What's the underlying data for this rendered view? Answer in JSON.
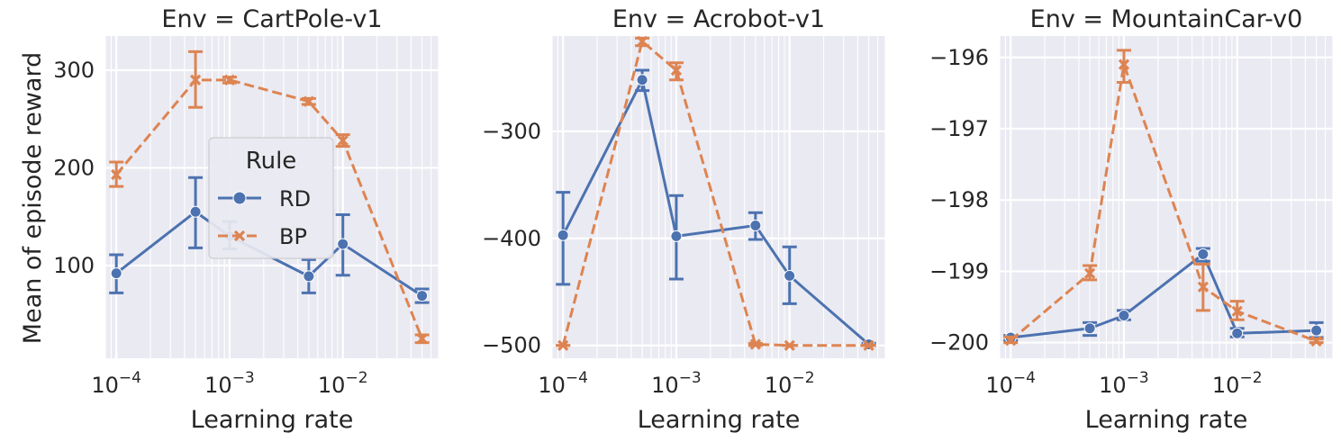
{
  "figure": {
    "ylabel": "Mean of episode reward",
    "xlabel": "Learning rate",
    "legend": {
      "title": "Rule",
      "entries": [
        {
          "name": "RD",
          "color": "#4c72b0",
          "marker": "circle",
          "dash": "solid"
        },
        {
          "name": "BP",
          "color": "#dd8452",
          "marker": "x",
          "dash": "dashed"
        }
      ],
      "placement": "center of first panel"
    }
  },
  "chart_data": [
    {
      "type": "line",
      "title": "Env = CartPole-v1",
      "xscale": "log",
      "xlim": [
        8e-05,
        0.07
      ],
      "ylim": [
        5,
        335
      ],
      "yticks": [
        100,
        200,
        300
      ],
      "yticklabels": [
        "100",
        "200",
        "300"
      ],
      "xticks": [
        0.0001,
        0.001,
        0.01
      ],
      "xticklabels": [
        {
          "base": "10",
          "exp": "−4"
        },
        {
          "base": "10",
          "exp": "−3"
        },
        {
          "base": "10",
          "exp": "−2"
        }
      ],
      "grid": true,
      "series": [
        {
          "name": "RD",
          "x": [
            0.0001,
            0.0005,
            0.001,
            0.005,
            0.01,
            0.05
          ],
          "y": [
            92,
            155,
            130,
            89,
            122,
            69
          ],
          "err": [
            [
              72,
              111
            ],
            [
              118,
              190
            ],
            [
              117,
              145
            ],
            [
              72,
              106
            ],
            [
              90,
              152
            ],
            [
              62,
              76
            ]
          ]
        },
        {
          "name": "BP",
          "x": [
            0.0001,
            0.0005,
            0.001,
            0.005,
            0.01,
            0.05
          ],
          "y": [
            193,
            290,
            290,
            268,
            228,
            25
          ],
          "err": [
            [
              181,
              206
            ],
            [
              262,
              319
            ],
            [
              287,
              293
            ],
            [
              265,
              271
            ],
            [
              222,
              234
            ],
            [
              21,
              29
            ]
          ]
        }
      ]
    },
    {
      "type": "line",
      "title": "Env = Acrobot-v1",
      "xscale": "log",
      "xlim": [
        8e-05,
        0.07
      ],
      "ylim": [
        -512,
        -211
      ],
      "yticks": [
        -500,
        -400,
        -300
      ],
      "yticklabels": [
        "−500",
        "−400",
        "−300"
      ],
      "xticks": [
        0.0001,
        0.001,
        0.01
      ],
      "xticklabels": [
        {
          "base": "10",
          "exp": "−4"
        },
        {
          "base": "10",
          "exp": "−3"
        },
        {
          "base": "10",
          "exp": "−2"
        }
      ],
      "grid": true,
      "series": [
        {
          "name": "RD",
          "x": [
            0.0001,
            0.0005,
            0.001,
            0.005,
            0.01,
            0.05
          ],
          "y": [
            -397,
            -252,
            -398,
            -388,
            -435,
            -499
          ],
          "err": [
            [
              -443,
              -357
            ],
            [
              -262,
              -243
            ],
            [
              -438,
              -360
            ],
            [
              -401,
              -376
            ],
            [
              -461,
              -408
            ],
            [
              -500,
              -498
            ]
          ]
        },
        {
          "name": "BP",
          "x": [
            0.0001,
            0.0005,
            0.001,
            0.005,
            0.01,
            0.05
          ],
          "y": [
            -500,
            -216,
            -243,
            -499,
            -500,
            -500
          ],
          "err": [
            [
              -500,
              -500
            ],
            [
              -220,
              -213
            ],
            [
              -252,
              -236
            ],
            [
              -500,
              -498
            ],
            [
              -500,
              -500
            ],
            [
              -500,
              -500
            ]
          ]
        }
      ]
    },
    {
      "type": "line",
      "title": "Env = MountainCar-v0",
      "xscale": "log",
      "xlim": [
        8e-05,
        0.07
      ],
      "ylim": [
        -200.22,
        -195.7
      ],
      "yticks": [
        -200,
        -199,
        -198,
        -197,
        -196
      ],
      "yticklabels": [
        "−200",
        "−199",
        "−198",
        "−197",
        "−196"
      ],
      "xticks": [
        0.0001,
        0.001,
        0.01
      ],
      "xticklabels": [
        {
          "base": "10",
          "exp": "−4"
        },
        {
          "base": "10",
          "exp": "−3"
        },
        {
          "base": "10",
          "exp": "−2"
        }
      ],
      "grid": true,
      "series": [
        {
          "name": "RD",
          "x": [
            0.0001,
            0.0005,
            0.001,
            0.005,
            0.01,
            0.05
          ],
          "y": [
            -199.93,
            -199.8,
            -199.62,
            -198.76,
            -199.87,
            -199.83
          ],
          "err": [
            [
              -199.97,
              -199.9
            ],
            [
              -199.9,
              -199.72
            ],
            [
              -199.68,
              -199.55
            ],
            [
              -198.86,
              -198.68
            ],
            [
              -199.92,
              -199.8
            ],
            [
              -199.93,
              -199.72
            ]
          ]
        },
        {
          "name": "BP",
          "x": [
            0.0001,
            0.0005,
            0.001,
            0.005,
            0.01,
            0.05
          ],
          "y": [
            -199.97,
            -199.03,
            -196.1,
            -199.22,
            -199.56,
            -199.98
          ],
          "err": [
            [
              -200,
              -199.92
            ],
            [
              -199.12,
              -198.92
            ],
            [
              -196.35,
              -195.9
            ],
            [
              -199.55,
              -198.9
            ],
            [
              -199.68,
              -199.42
            ],
            [
              -200,
              -199.95
            ]
          ]
        }
      ]
    }
  ]
}
